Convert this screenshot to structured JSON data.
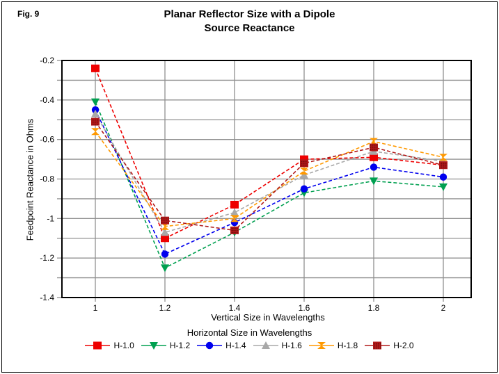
{
  "figure_label": "Fig. 9",
  "title": {
    "line1": "Planar Reflector Size with a Dipole",
    "line2": "Source Reactance"
  },
  "chart_data": {
    "type": "line",
    "x": [
      1,
      1.2,
      1.4,
      1.6,
      1.8,
      2
    ],
    "x_tick_labels": [
      "1",
      "1.2",
      "1.4",
      "1.6",
      "1.8",
      "2"
    ],
    "xlabel": "Vertical Size in Wavelengths",
    "ylabel": "Feedpoint Reactance in Ohms",
    "ylim": [
      -1.4,
      -0.2
    ],
    "y_tick_step": 0.1,
    "y_label_step": 0.2,
    "y_tick_labels": [
      "-0.2",
      "-0.4",
      "-0.6",
      "-0.8",
      "-1",
      "-1.2",
      "-1.4"
    ],
    "grid": true,
    "gridline_color": "#909090",
    "frame_color": "#000000",
    "legend_title": "Horizontal Size in Wavelengths",
    "legend_position": "bottom",
    "line_style": "dashed",
    "series": [
      {
        "name": "H-1.0",
        "color": "#ee0000",
        "marker": "square",
        "values": [
          -0.24,
          -1.1,
          -0.93,
          -0.7,
          -0.69,
          -0.73
        ]
      },
      {
        "name": "H-1.2",
        "color": "#00a050",
        "marker": "triangle-down",
        "values": [
          -0.41,
          -1.25,
          -1.07,
          -0.87,
          -0.81,
          -0.84
        ]
      },
      {
        "name": "H-1.4",
        "color": "#0000ee",
        "marker": "circle",
        "values": [
          -0.45,
          -1.18,
          -1.02,
          -0.85,
          -0.74,
          -0.79
        ]
      },
      {
        "name": "H-1.6",
        "color": "#a8a8a8",
        "marker": "triangle-up",
        "values": [
          -0.47,
          -1.07,
          -0.97,
          -0.78,
          -0.66,
          -0.71
        ]
      },
      {
        "name": "H-1.8",
        "color": "#ff9900",
        "marker": "hourglass",
        "values": [
          -0.56,
          -1.04,
          -1.0,
          -0.76,
          -0.61,
          -0.69
        ]
      },
      {
        "name": "H-2.0",
        "color": "#b01818",
        "marker": "square-pattern",
        "pattern_dot_color": "#5e0808",
        "values": [
          -0.51,
          -1.01,
          -1.06,
          -0.72,
          -0.64,
          -0.73
        ]
      }
    ]
  }
}
